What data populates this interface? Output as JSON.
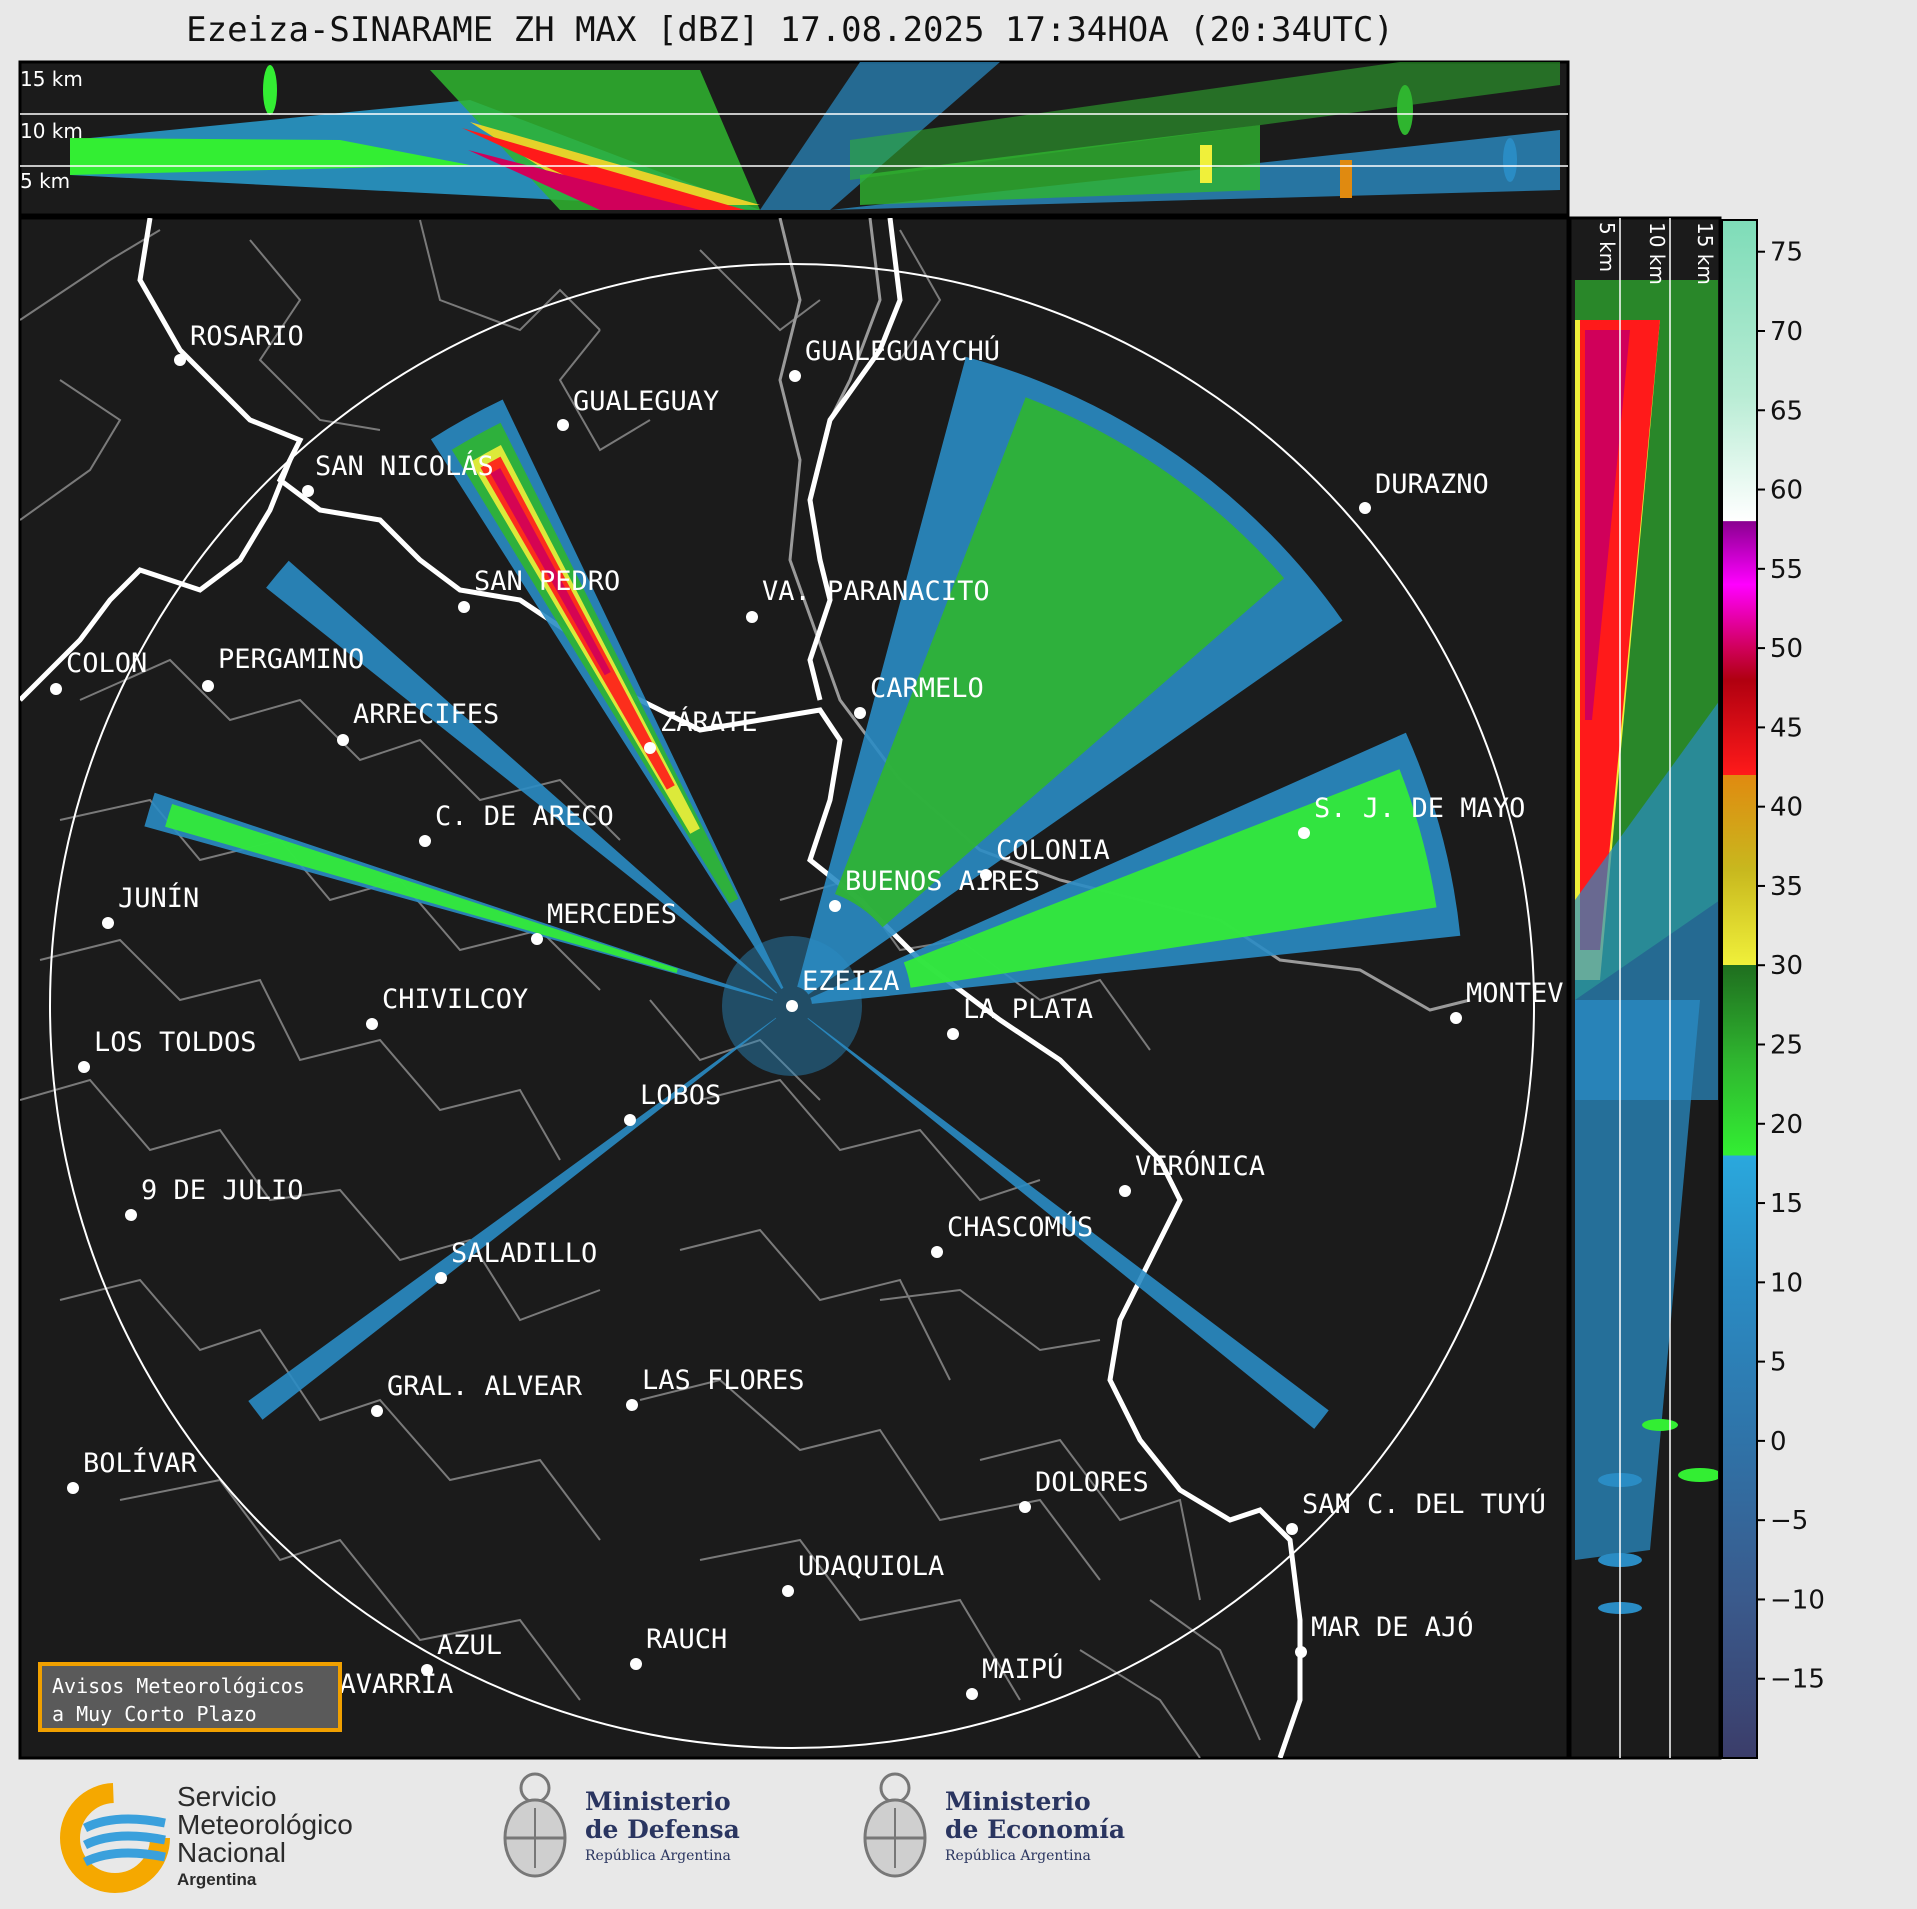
{
  "title": "Ezeiza-SINARAME ZH MAX [dBZ] 17.08.2025 17:34HOA (20:34UTC)",
  "top_panel": {
    "height_labels": [
      "15 km",
      "10 km",
      "5 km"
    ]
  },
  "side_panel": {
    "height_labels": [
      "5 km",
      "10 km",
      "15 km"
    ]
  },
  "colorbar": {
    "unit": "dBZ",
    "ticks": [
      "75",
      "70",
      "65",
      "60",
      "55",
      "50",
      "45",
      "40",
      "35",
      "30",
      "25",
      "20",
      "15",
      "10",
      "5",
      "0",
      "−5",
      "−10",
      "−15"
    ],
    "color_stops": [
      {
        "dbz": -20,
        "color": "#3b3d6a"
      },
      {
        "dbz": -10,
        "color": "#3a5a8c"
      },
      {
        "dbz": 0,
        "color": "#2f73a8"
      },
      {
        "dbz": 10,
        "color": "#2a8cc4"
      },
      {
        "dbz": 18,
        "color": "#2aa8dd"
      },
      {
        "dbz": 18.01,
        "color": "#33ee33"
      },
      {
        "dbz": 24,
        "color": "#2fb52f"
      },
      {
        "dbz": 30,
        "color": "#1f6e1f"
      },
      {
        "dbz": 30.01,
        "color": "#f0f03a"
      },
      {
        "dbz": 36,
        "color": "#c8b81e"
      },
      {
        "dbz": 42,
        "color": "#e08a10"
      },
      {
        "dbz": 42.01,
        "color": "#ff1a1a"
      },
      {
        "dbz": 48,
        "color": "#b00010"
      },
      {
        "dbz": 50,
        "color": "#d0005a"
      },
      {
        "dbz": 54,
        "color": "#ff00ff"
      },
      {
        "dbz": 58,
        "color": "#8a0090"
      },
      {
        "dbz": 58.01,
        "color": "#ffffff"
      },
      {
        "dbz": 66,
        "color": "#b8ecd4"
      },
      {
        "dbz": 77,
        "color": "#7edcb8"
      }
    ]
  },
  "cities": [
    {
      "name": "ROSARIO"
    },
    {
      "name": "GUALEGUAYCHÚ"
    },
    {
      "name": "GUALEGUAY"
    },
    {
      "name": "SAN NICOLÁS"
    },
    {
      "name": "DURAZNO"
    },
    {
      "name": "SAN PEDRO"
    },
    {
      "name": "VA. PARANACITO"
    },
    {
      "name": "COLON"
    },
    {
      "name": "PERGAMINO"
    },
    {
      "name": "CARMELO"
    },
    {
      "name": "ARRECIFES"
    },
    {
      "name": "ZÁRATE"
    },
    {
      "name": "S. J. DE MAYO"
    },
    {
      "name": "C. DE ARECO"
    },
    {
      "name": "COLONIA"
    },
    {
      "name": "JUNÍN"
    },
    {
      "name": "BUENOS AIRES"
    },
    {
      "name": "MERCEDES"
    },
    {
      "name": "EZEIZA"
    },
    {
      "name": "MONTEV"
    },
    {
      "name": "CHIVILCOY"
    },
    {
      "name": "LA PLATA"
    },
    {
      "name": "LOS TOLDOS"
    },
    {
      "name": "LOBOS"
    },
    {
      "name": "VERÓNICA"
    },
    {
      "name": "9 DE JULIO"
    },
    {
      "name": "CHASCOMÚS"
    },
    {
      "name": "SALADILLO"
    },
    {
      "name": "GRAL. ALVEAR"
    },
    {
      "name": "LAS FLORES"
    },
    {
      "name": "BOLÍVAR"
    },
    {
      "name": "DOLORES"
    },
    {
      "name": "SAN C. DEL TUYÚ"
    },
    {
      "name": "UDAQUIOLA"
    },
    {
      "name": "MAR DE AJÓ"
    },
    {
      "name": "RAUCH"
    },
    {
      "name": "AZUL"
    },
    {
      "name": "MAIPÚ"
    },
    {
      "name": "OLAVARRÍA"
    }
  ],
  "avisos": {
    "line1": "Avisos Meteorológicos",
    "line2": "a Muy Corto Plazo"
  },
  "logos": {
    "smn": {
      "line1": "Servicio",
      "line2": "Meteorológico",
      "line3": "Nacional",
      "sub": "Argentina"
    },
    "defensa": {
      "line1": "Ministerio",
      "line2": "de Defensa",
      "sub": "República Argentina"
    },
    "economia": {
      "line1": "Ministerio",
      "line2": "de Economía",
      "sub": "República Argentina"
    }
  },
  "echoes": [
    {
      "name": "NW-strong-band",
      "az_deg": 331,
      "width_deg": 7,
      "max_dbz": 56
    },
    {
      "name": "NE-fan",
      "az_deg": 35,
      "width_deg": 40,
      "max_dbz": 24
    },
    {
      "name": "E-fan",
      "az_deg": 75,
      "width_deg": 18,
      "max_dbz": 22
    },
    {
      "name": "W-band",
      "az_deg": 287,
      "width_deg": 3,
      "max_dbz": 20
    },
    {
      "name": "NW-band-2",
      "az_deg": 310,
      "width_deg": 3,
      "max_dbz": 14
    },
    {
      "name": "SW-band",
      "az_deg": 233,
      "width_deg": 2,
      "max_dbz": 12
    },
    {
      "name": "SE-band",
      "az_deg": 128,
      "width_deg": 2,
      "max_dbz": 10
    }
  ]
}
